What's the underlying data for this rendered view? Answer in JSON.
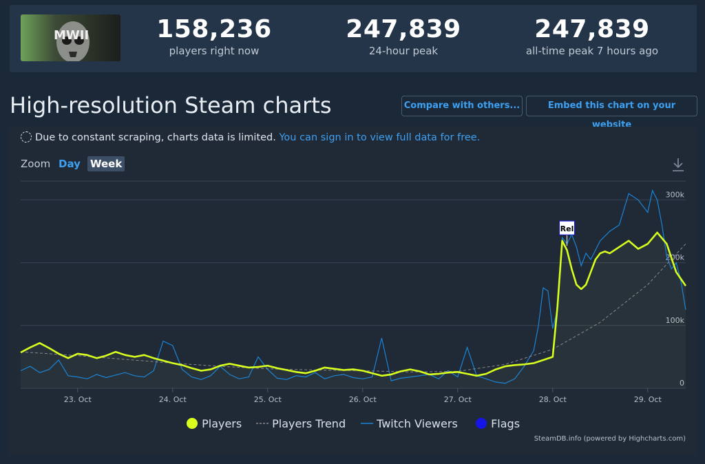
{
  "header": {
    "game_image": "Call of Duty: Modern Warfare II cover art",
    "game_logo_text": "MWII",
    "stats": [
      {
        "value": "158,236",
        "label": "players right now"
      },
      {
        "value": "247,839",
        "label": "24-hour peak"
      },
      {
        "value": "247,839",
        "label": "all-time peak 7 hours ago"
      }
    ]
  },
  "page_title": "High-resolution Steam charts",
  "buttons": {
    "compare": "Compare with others...",
    "embed": "Embed this chart on your website"
  },
  "notice": {
    "text": "Due to constant scraping, charts data is limited.",
    "link": "You can sign in to view full data for free."
  },
  "zoom": {
    "label": "Zoom",
    "options": [
      "Day",
      "Week"
    ],
    "selected": "Week"
  },
  "colors": {
    "players": "#d8ff1e",
    "trend": "#8a8a8a",
    "twitch": "#1b85d6",
    "flags": "#1515e8",
    "accent": "#3ea0f0"
  },
  "chart_data": {
    "type": "line",
    "x_tick_labels": [
      "23. Oct",
      "24. Oct",
      "25. Oct",
      "26. Oct",
      "27. Oct",
      "28. Oct",
      "29. Oct"
    ],
    "x_range_days": [
      22.4,
      29.4
    ],
    "y_tick_labels": [
      "0",
      "100k",
      "200k",
      "300k"
    ],
    "ylim": [
      0,
      330000
    ],
    "grid": true,
    "legend": "bottom-center",
    "series": [
      {
        "name": "Players",
        "x": [
          22.4,
          22.5,
          22.6,
          22.7,
          22.8,
          22.9,
          23.0,
          23.1,
          23.2,
          23.3,
          23.4,
          23.5,
          23.6,
          23.7,
          23.8,
          23.9,
          24.0,
          24.1,
          24.2,
          24.3,
          24.4,
          24.5,
          24.6,
          24.7,
          24.8,
          24.9,
          25.0,
          25.1,
          25.2,
          25.3,
          25.4,
          25.5,
          25.6,
          25.7,
          25.8,
          25.9,
          26.0,
          26.1,
          26.2,
          26.3,
          26.4,
          26.5,
          26.6,
          26.7,
          26.8,
          26.9,
          27.0,
          27.1,
          27.2,
          27.3,
          27.4,
          27.5,
          27.6,
          27.7,
          27.8,
          27.9,
          28.0,
          28.05,
          28.1,
          28.15,
          28.2,
          28.25,
          28.3,
          28.35,
          28.4,
          28.45,
          28.5,
          28.55,
          28.6,
          28.7,
          28.8,
          28.9,
          29.0,
          29.1,
          29.2,
          29.3,
          29.4
        ],
        "values": [
          57000,
          65000,
          72000,
          64000,
          55000,
          48000,
          55000,
          53000,
          48000,
          52000,
          58000,
          53000,
          50000,
          53000,
          48000,
          44000,
          40000,
          37000,
          32000,
          28000,
          30000,
          36000,
          39000,
          36000,
          33000,
          34000,
          36000,
          32000,
          29000,
          26000,
          24000,
          28000,
          33000,
          31000,
          29000,
          30000,
          28000,
          24000,
          20000,
          22000,
          27000,
          30000,
          27000,
          22000,
          23000,
          25000,
          26000,
          23000,
          20000,
          23000,
          30000,
          35000,
          37000,
          38000,
          40000,
          45000,
          50000,
          130000,
          235000,
          220000,
          190000,
          165000,
          158000,
          165000,
          185000,
          205000,
          215000,
          218000,
          215000,
          225000,
          235000,
          222000,
          230000,
          248000,
          230000,
          185000,
          163000
        ]
      },
      {
        "name": "Players Trend",
        "dashed": true,
        "x": [
          22.4,
          23.0,
          23.5,
          24.0,
          24.5,
          25.0,
          25.5,
          26.0,
          26.5,
          27.0,
          27.5,
          28.0,
          28.5,
          29.0,
          29.4
        ],
        "values": [
          58000,
          52000,
          46000,
          40000,
          35000,
          31000,
          29000,
          28000,
          26000,
          27000,
          38000,
          62000,
          105000,
          165000,
          230000
        ]
      },
      {
        "name": "Twitch Viewers",
        "x": [
          22.4,
          22.5,
          22.6,
          22.7,
          22.8,
          22.9,
          23.0,
          23.1,
          23.2,
          23.3,
          23.4,
          23.5,
          23.6,
          23.7,
          23.8,
          23.9,
          24.0,
          24.1,
          24.2,
          24.3,
          24.4,
          24.5,
          24.6,
          24.7,
          24.8,
          24.9,
          25.0,
          25.1,
          25.2,
          25.3,
          25.4,
          25.5,
          25.6,
          25.7,
          25.8,
          25.9,
          26.0,
          26.1,
          26.2,
          26.3,
          26.4,
          26.5,
          26.6,
          26.7,
          26.8,
          26.9,
          27.0,
          27.1,
          27.2,
          27.3,
          27.4,
          27.5,
          27.6,
          27.7,
          27.8,
          27.85,
          27.9,
          27.95,
          28.0,
          28.05,
          28.1,
          28.15,
          28.2,
          28.25,
          28.3,
          28.35,
          28.4,
          28.5,
          28.6,
          28.7,
          28.8,
          28.9,
          29.0,
          29.05,
          29.1,
          29.15,
          29.2,
          29.25,
          29.3,
          29.35,
          29.4
        ],
        "values": [
          28000,
          35000,
          25000,
          30000,
          45000,
          20000,
          18000,
          15000,
          22000,
          17000,
          21000,
          25000,
          20000,
          18000,
          28000,
          75000,
          68000,
          30000,
          18000,
          14000,
          20000,
          35000,
          22000,
          15000,
          18000,
          50000,
          30000,
          16000,
          14000,
          20000,
          18000,
          25000,
          15000,
          20000,
          22000,
          17000,
          15000,
          18000,
          80000,
          12000,
          16000,
          18000,
          20000,
          22000,
          15000,
          28000,
          18000,
          65000,
          20000,
          15000,
          10000,
          8000,
          15000,
          35000,
          60000,
          100000,
          160000,
          155000,
          95000,
          125000,
          240000,
          230000,
          245000,
          225000,
          195000,
          215000,
          205000,
          235000,
          250000,
          260000,
          310000,
          300000,
          280000,
          315000,
          300000,
          260000,
          210000,
          190000,
          200000,
          170000,
          125000
        ]
      }
    ],
    "flags": [
      {
        "x": 28.15,
        "value": 240000,
        "label": "Rel"
      }
    ]
  },
  "legend": {
    "players": "Players",
    "trend": "Players Trend",
    "twitch": "Twitch Viewers",
    "flags": "Flags"
  },
  "credit": "SteamDB.info (powered by Highcharts.com)"
}
